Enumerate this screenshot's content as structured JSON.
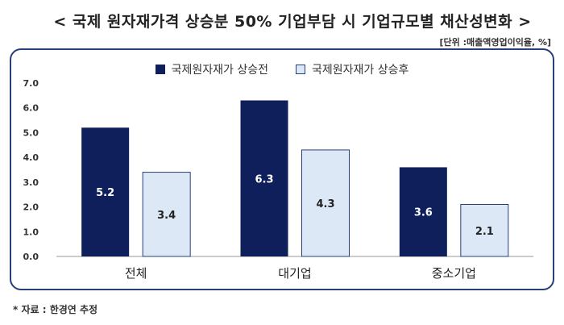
{
  "page": {
    "title": "< 국제 원자재가격 상승분 50% 기업부담 시 기업규모별 채산성변화 >",
    "unit": "[단위 :매출액영업이익율, %]",
    "source": "* 자료 : 한경연 추정"
  },
  "chart_data": {
    "type": "bar",
    "title": "< 국제 원자재가격 상승분 50% 기업부담 시 기업규모별 채산성변화 >",
    "xlabel": "",
    "ylabel": "",
    "categories": [
      "전체",
      "대기업",
      "중소기업"
    ],
    "series": [
      {
        "name": "국제원자재가 상승전",
        "values": [
          5.2,
          6.3,
          3.6
        ],
        "color": "#0e1f5b",
        "label_color": "#ffffff"
      },
      {
        "name": "국제원자재가 상승후",
        "values": [
          3.4,
          4.3,
          2.1
        ],
        "color": "#dce8f6",
        "border": "#27407a",
        "label_color": "#222222"
      }
    ],
    "ylim": [
      0,
      7
    ],
    "yticks": [
      "0.0",
      "1.0",
      "2.0",
      "3.0",
      "4.0",
      "5.0",
      "6.0",
      "7.0"
    ],
    "grid": false,
    "legend": "top"
  }
}
